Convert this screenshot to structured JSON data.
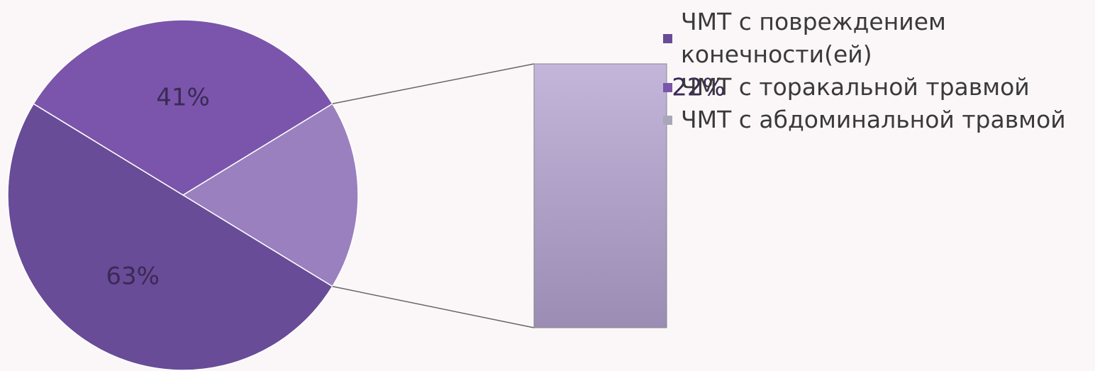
{
  "chart_data": {
    "type": "bar-of-pie",
    "series": [
      {
        "name": "ЧМТ с повреждением конечности(ей)",
        "color": "#684c98",
        "values": [
          63
        ],
        "value_labels": [
          "63%"
        ]
      },
      {
        "name": "ЧМТ с торакальной травмой",
        "color": "#7b55ab",
        "values": [
          41
        ],
        "value_labels": [
          "41%"
        ]
      },
      {
        "name": "ЧМТ с абдоминальной травмой",
        "color": "#a696c4",
        "values": [
          22
        ],
        "value_labels": [
          "22%"
        ]
      }
    ]
  }
}
